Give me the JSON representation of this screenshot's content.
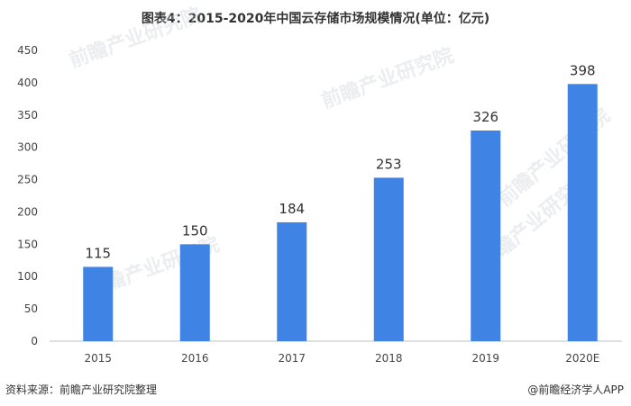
{
  "chart_data": {
    "type": "bar",
    "title": "图表4：2015-2020年中国云存储市场规模情况(单位：亿元)",
    "categories": [
      "2015",
      "2016",
      "2017",
      "2018",
      "2019",
      "2020E"
    ],
    "values": [
      115,
      150,
      184,
      253,
      326,
      398
    ],
    "xlabel": "",
    "ylabel": "",
    "ylim": [
      0,
      450
    ],
    "yticks": [
      0,
      50,
      100,
      150,
      200,
      250,
      300,
      350,
      400,
      450
    ],
    "grid": false,
    "legend": "none",
    "bar_color": "#3f84e5"
  },
  "footer": {
    "source": "资料来源：前瞻产业研究院整理",
    "credit": "@前瞻经济学人APP"
  },
  "watermark": "前瞻产业研究院"
}
